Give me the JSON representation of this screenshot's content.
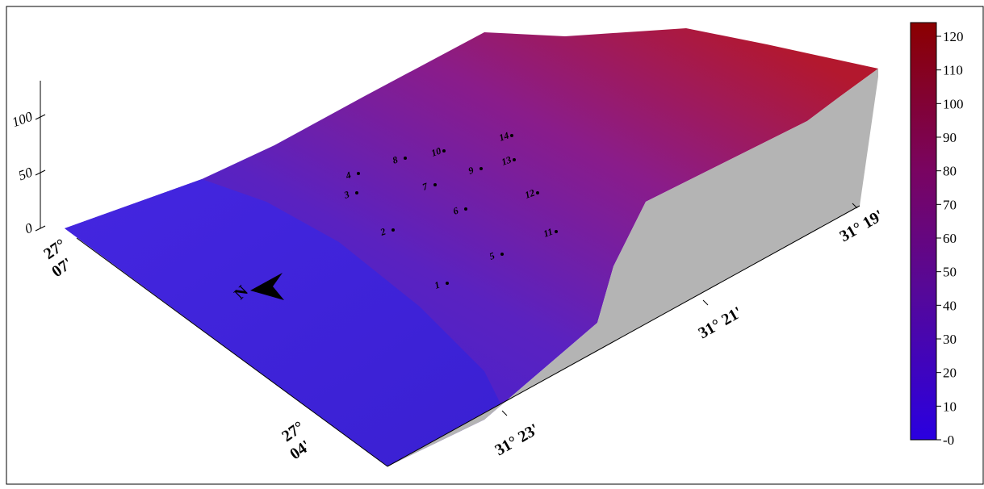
{
  "z_axis": {
    "ticks": [
      0,
      50,
      100
    ]
  },
  "colorbar": {
    "ticks": [
      {
        "value": 0,
        "label": "-0"
      },
      10,
      20,
      30,
      40,
      50,
      60,
      70,
      80,
      90,
      100,
      110,
      120
    ]
  },
  "lat_labels": [
    [
      "27°",
      "07'"
    ],
    [
      "27°",
      "04'"
    ]
  ],
  "lon_labels": [
    "31° 23'",
    "31° 21'",
    "31° 19'"
  ],
  "north_label": "N",
  "points": [
    "1",
    "2",
    "3",
    "4",
    "5",
    "6",
    "7",
    "8",
    "9",
    "10",
    "11",
    "12",
    "13",
    "14"
  ]
}
